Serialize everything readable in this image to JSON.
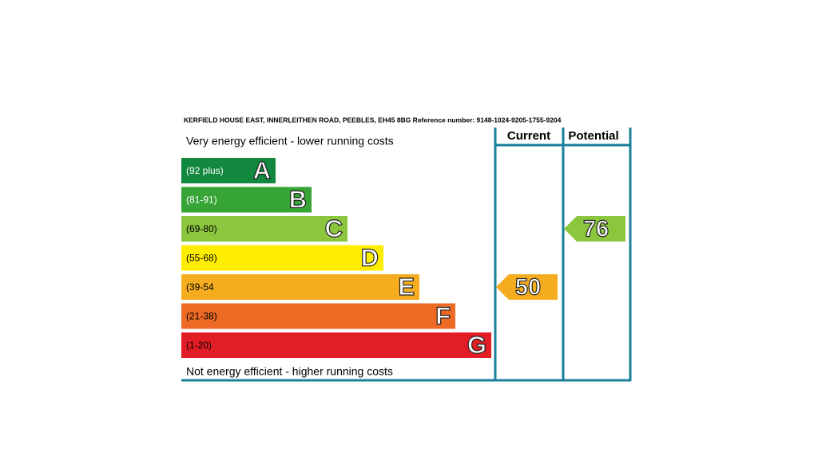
{
  "header": {
    "address": "KERFIELD HOUSE EAST,  INNERLEITHEN ROAD, PEEBLES, EH45 8BG Reference number: 9148-1024-9205-1755-9204"
  },
  "columns": {
    "current": "Current",
    "potential": "Potential"
  },
  "top_note": "Very energy efficient - lower running costs",
  "bottom_note": "Not energy efficient - higher running costs",
  "bands": [
    {
      "range": "(92 plus)",
      "letter": "A",
      "color": "#12883f",
      "text_color": "#ffffff"
    },
    {
      "range": "(81-91)",
      "letter": "B",
      "color": "#36a535",
      "text_color": "#ffffff"
    },
    {
      "range": "(69-80)",
      "letter": "C",
      "color": "#8cc53e",
      "text_color": "#000000"
    },
    {
      "range": "(55-68)",
      "letter": "D",
      "color": "#ffed00",
      "text_color": "#000000"
    },
    {
      "range": "(39-54",
      "letter": "E",
      "color": "#f5ad1f",
      "text_color": "#000000"
    },
    {
      "range": "(21-38)",
      "letter": "F",
      "color": "#ec6a24",
      "text_color": "#000000"
    },
    {
      "range": "(1-20)",
      "letter": "G",
      "color": "#e21d26",
      "text_color": "#000000"
    }
  ],
  "ratings": {
    "current": 50,
    "potential": 76
  }
}
